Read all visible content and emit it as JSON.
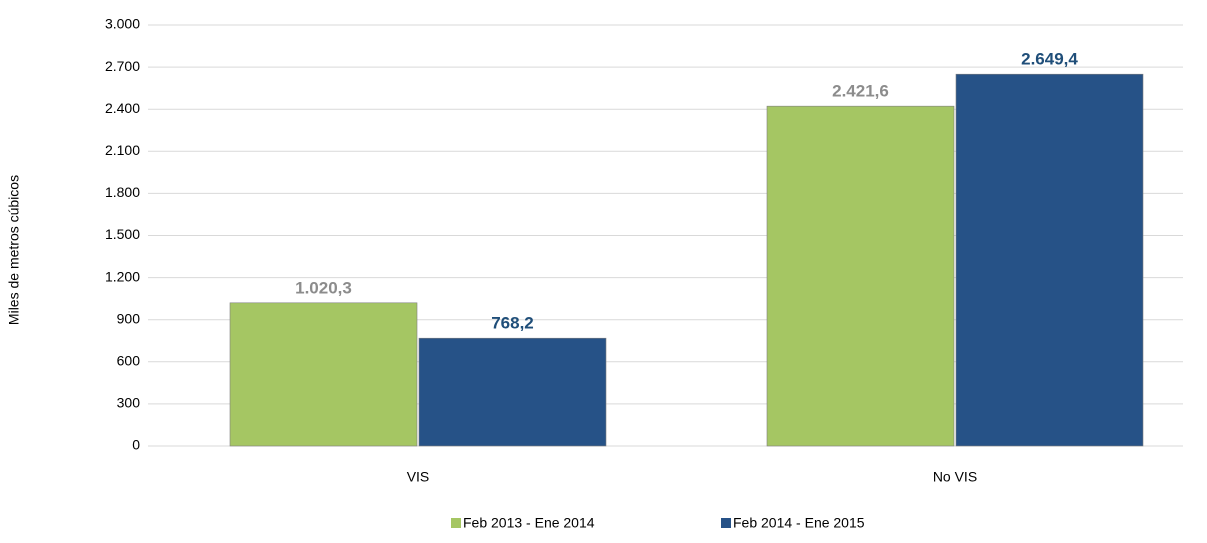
{
  "chart_data": {
    "type": "bar",
    "y_label": "Miles de metros cúbicos",
    "categories": [
      "VIS",
      "No VIS"
    ],
    "series": [
      {
        "name": "Feb 2013 - Ene 2014",
        "color": "#a5c663",
        "values": [
          1020.3,
          2421.6
        ],
        "value_labels": [
          "1.020,3",
          "2.421,6"
        ]
      },
      {
        "name": "Feb 2014 - Ene 2015",
        "color": "#265287",
        "values": [
          768.2,
          2649.4
        ],
        "value_labels": [
          "768,2",
          "2.649,4"
        ]
      }
    ],
    "ylim": [
      0,
      3000
    ],
    "yticks": [
      0,
      300,
      600,
      900,
      {
        "value": 1200,
        "label": "1.200"
      },
      {
        "value": 1500,
        "label": "1.500"
      },
      {
        "value": 1800,
        "label": "1.800"
      },
      {
        "value": 2100,
        "label": "2.100"
      },
      {
        "value": 2400,
        "label": "2.400"
      },
      {
        "value": 2700,
        "label": "2.700"
      },
      {
        "value": 3000,
        "label": "3.000"
      }
    ],
    "grid": true,
    "legend": "bottom"
  }
}
